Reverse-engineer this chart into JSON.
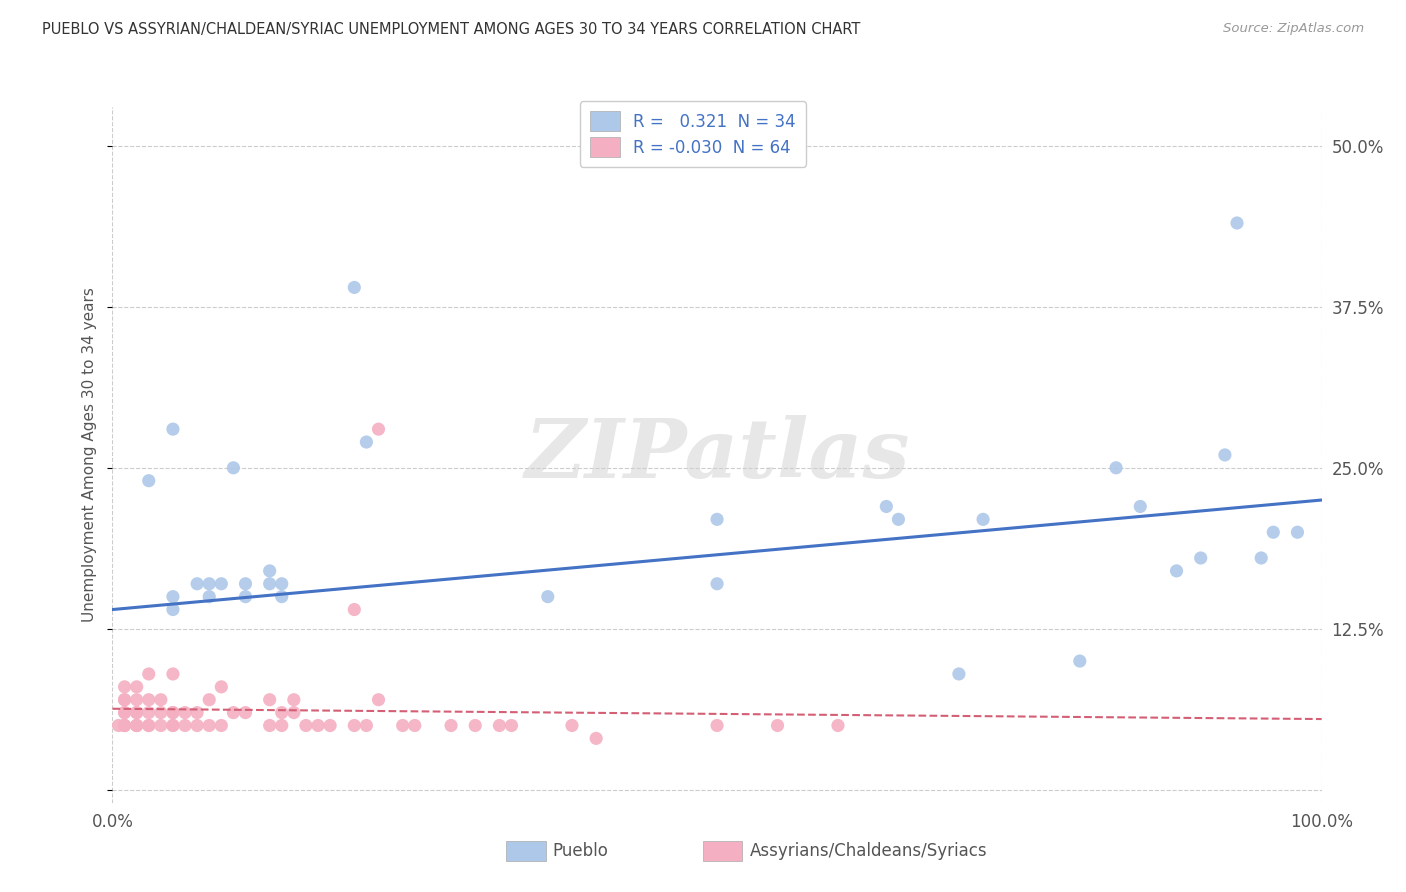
{
  "title": "PUEBLO VS ASSYRIAN/CHALDEAN/SYRIAC UNEMPLOYMENT AMONG AGES 30 TO 34 YEARS CORRELATION CHART",
  "source": "Source: ZipAtlas.com",
  "ylabel": "Unemployment Among Ages 30 to 34 years",
  "xlim": [
    0,
    100
  ],
  "ylim": [
    -1,
    53
  ],
  "yticks": [
    0,
    12.5,
    25.0,
    37.5,
    50.0
  ],
  "ytick_labels": [
    "",
    "12.5%",
    "25.0%",
    "37.5%",
    "50.0%"
  ],
  "xticks": [
    0,
    100
  ],
  "xtick_labels": [
    "0.0%",
    "100.0%"
  ],
  "pueblo_R": 0.321,
  "pueblo_N": 34,
  "assyrian_R": -0.03,
  "assyrian_N": 64,
  "pueblo_color": "#adc8e8",
  "assyrian_color": "#f4b0c2",
  "pueblo_line_color": "#4472c4",
  "assyrian_line_color": "#d45f75",
  "watermark": "ZIPatlas",
  "pueblo_x": [
    3,
    5,
    5,
    5,
    7,
    8,
    8,
    9,
    10,
    11,
    11,
    13,
    13,
    14,
    14,
    20,
    21,
    36,
    50,
    50,
    64,
    65,
    70,
    72,
    80,
    83,
    85,
    88,
    90,
    92,
    93,
    95,
    96,
    98
  ],
  "pueblo_y": [
    24,
    28,
    14,
    15,
    16,
    15,
    16,
    16,
    25,
    15,
    16,
    16,
    17,
    15,
    16,
    39,
    27,
    15,
    16,
    21,
    22,
    21,
    9,
    21,
    10,
    25,
    22,
    17,
    18,
    26,
    44,
    18,
    20,
    20
  ],
  "assyrian_x": [
    0.5,
    1,
    1,
    1,
    1,
    1,
    1,
    1,
    1,
    2,
    2,
    2,
    2,
    2,
    2,
    2,
    3,
    3,
    3,
    3,
    3,
    4,
    4,
    4,
    5,
    5,
    5,
    5,
    5,
    6,
    6,
    7,
    7,
    8,
    8,
    9,
    9,
    10,
    11,
    13,
    13,
    14,
    14,
    15,
    15,
    16,
    17,
    18,
    20,
    21,
    22,
    24,
    25,
    28,
    30,
    32,
    33,
    38,
    40,
    50,
    55,
    60,
    22,
    20
  ],
  "assyrian_y": [
    5,
    5,
    5,
    5,
    6,
    6,
    7,
    7,
    8,
    5,
    5,
    5,
    6,
    6,
    7,
    8,
    5,
    5,
    6,
    7,
    9,
    5,
    6,
    7,
    5,
    5,
    6,
    6,
    9,
    5,
    6,
    5,
    6,
    5,
    7,
    5,
    8,
    6,
    6,
    5,
    7,
    5,
    6,
    6,
    7,
    5,
    5,
    5,
    5,
    5,
    7,
    5,
    5,
    5,
    5,
    5,
    5,
    5,
    4,
    5,
    5,
    5,
    28,
    14
  ],
  "pueblo_trend_x": [
    0,
    100
  ],
  "pueblo_trend_y": [
    14.0,
    22.5
  ],
  "assyrian_trend_x": [
    0,
    100
  ],
  "assyrian_trend_y": [
    6.3,
    5.5
  ],
  "legend_pueblo_label": "R =   0.321  N = 34",
  "legend_assyrian_label": "R = -0.030  N = 64",
  "bottom_legend_pueblo": "Pueblo",
  "bottom_legend_assyrian": "Assyrians/Chaldeans/Syriacs"
}
